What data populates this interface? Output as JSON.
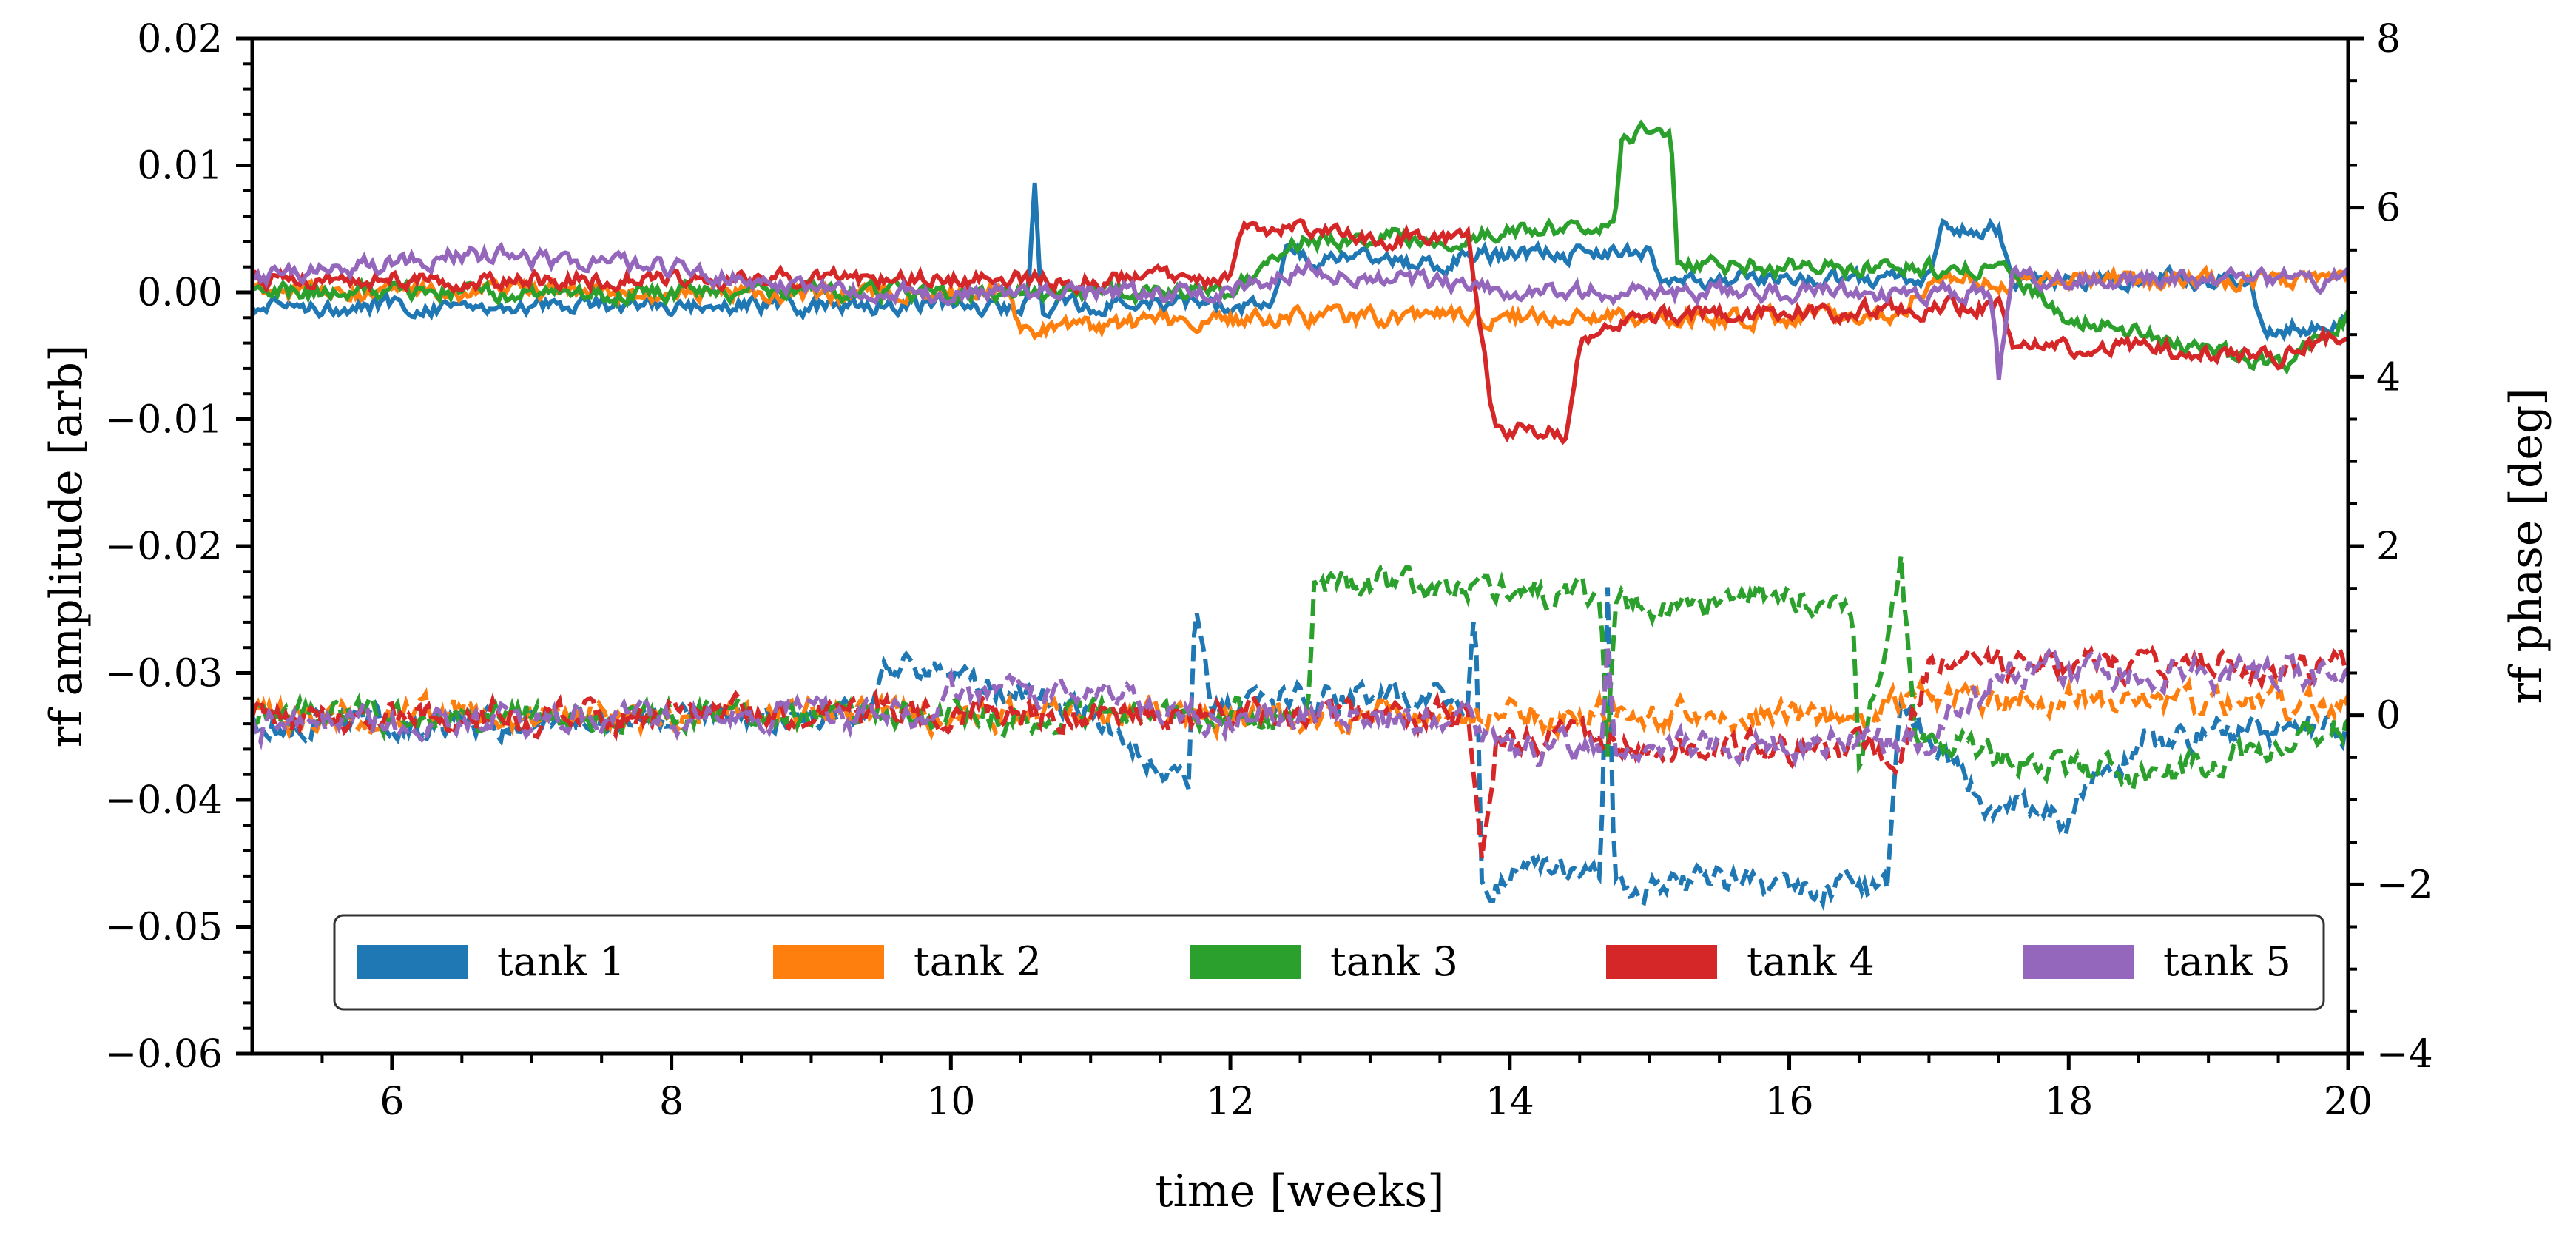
{
  "chart_data": {
    "type": "line",
    "xlabel": "time [weeks]",
    "ylabel_left": "rf amplitude [arb]",
    "ylabel_right": "rf phase [deg]",
    "xlim": [
      5,
      20
    ],
    "ylim_left": [
      -0.06,
      0.02
    ],
    "ylim_right": [
      -4,
      8
    ],
    "xticks": [
      "6",
      "8",
      "10",
      "12",
      "14",
      "16",
      "18",
      "20"
    ],
    "xtick_values": [
      6,
      8,
      10,
      12,
      14,
      16,
      18,
      20
    ],
    "yticks_left": [
      "0.02",
      "0.01",
      "0.00",
      "−0.01",
      "−0.02",
      "−0.03",
      "−0.04",
      "−0.05",
      "−0.06"
    ],
    "ytick_left_values": [
      0.02,
      0.01,
      0,
      -0.01,
      -0.02,
      -0.03,
      -0.04,
      -0.05,
      -0.06
    ],
    "yticks_right": [
      "8",
      "6",
      "4",
      "2",
      "0",
      "−2",
      "−4"
    ],
    "ytick_right_values": [
      8,
      6,
      4,
      2,
      0,
      -2,
      -4
    ],
    "legend_position": "lower-center",
    "legend": [
      "tank 1",
      "tank 2",
      "tank 3",
      "tank 4",
      "tank 5"
    ],
    "series": [
      {
        "name": "tank 1",
        "color": "#1f77b4",
        "amplitude": [
          [
            5,
            -0.001
          ],
          [
            10.55,
            -0.001
          ],
          [
            10.6,
            0.0085
          ],
          [
            10.65,
            -0.001
          ],
          [
            12.3,
            -0.001
          ],
          [
            12.4,
            0.003
          ],
          [
            13.5,
            0.002
          ],
          [
            13.7,
            0.003
          ],
          [
            15,
            0.003
          ],
          [
            15.1,
            0.001
          ],
          [
            17,
            0.001
          ],
          [
            17.1,
            0.005
          ],
          [
            17.5,
            0.005
          ],
          [
            17.6,
            0.001
          ],
          [
            19.3,
            0.001
          ],
          [
            19.4,
            -0.003
          ],
          [
            20,
            -0.002
          ]
        ],
        "phase": [
          [
            5,
            -0.1
          ],
          [
            9.4,
            0
          ],
          [
            9.5,
            0.6
          ],
          [
            10.5,
            0.3
          ],
          [
            11,
            0
          ],
          [
            11.7,
            -0.9
          ],
          [
            11.75,
            1.4
          ],
          [
            11.85,
            0.2
          ],
          [
            13.7,
            0.2
          ],
          [
            13.75,
            1.5
          ],
          [
            13.8,
            -2
          ],
          [
            14.65,
            -1.8
          ],
          [
            14.7,
            1.5
          ],
          [
            14.75,
            -2
          ],
          [
            16.7,
            -2
          ],
          [
            16.8,
            0.2
          ],
          [
            17.4,
            -1
          ],
          [
            18,
            -1.2
          ],
          [
            18.5,
            -0.3
          ],
          [
            20,
            -0.1
          ]
        ]
      },
      {
        "name": "tank 2",
        "color": "#ff7f0e",
        "amplitude": [
          [
            5,
            0.0
          ],
          [
            10.4,
            0.0
          ],
          [
            10.5,
            -0.003
          ],
          [
            12,
            -0.002
          ],
          [
            14,
            -0.002
          ],
          [
            16.8,
            -0.002
          ],
          [
            17,
            0.001
          ],
          [
            20,
            0.001
          ]
        ],
        "phase": [
          [
            5,
            0
          ],
          [
            12,
            0
          ],
          [
            16.5,
            0
          ],
          [
            17,
            0.2
          ],
          [
            20,
            0.1
          ]
        ]
      },
      {
        "name": "tank 3",
        "color": "#2ca02c",
        "amplitude": [
          [
            5,
            0.0
          ],
          [
            12,
            0.0
          ],
          [
            12.5,
            0.004
          ],
          [
            14.6,
            0.005
          ],
          [
            14.75,
            0.005
          ],
          [
            14.8,
            0.0125
          ],
          [
            15.15,
            0.0125
          ],
          [
            15.2,
            0.002
          ],
          [
            17.5,
            0.002
          ],
          [
            18,
            -0.002
          ],
          [
            19.5,
            -0.006
          ],
          [
            20,
            -0.002
          ]
        ],
        "phase": [
          [
            5,
            0
          ],
          [
            12.55,
            0
          ],
          [
            12.6,
            1.6
          ],
          [
            14.65,
            1.4
          ],
          [
            14.7,
            -0.3
          ],
          [
            14.75,
            1.3
          ],
          [
            16.45,
            1.4
          ],
          [
            16.5,
            -0.5
          ],
          [
            16.8,
            1.8
          ],
          [
            16.9,
            -0.2
          ],
          [
            17.5,
            -0.5
          ],
          [
            18.5,
            -0.7
          ],
          [
            19,
            -0.6
          ],
          [
            20,
            -0.1
          ]
        ]
      },
      {
        "name": "tank 4",
        "color": "#d62728",
        "amplitude": [
          [
            5,
            0.001
          ],
          [
            12,
            0.001
          ],
          [
            12.1,
            0.005
          ],
          [
            13.7,
            0.004
          ],
          [
            13.8,
            -0.004
          ],
          [
            13.9,
            -0.011
          ],
          [
            14.4,
            -0.011
          ],
          [
            14.5,
            -0.004
          ],
          [
            15,
            -0.002
          ],
          [
            17.5,
            -0.001
          ],
          [
            17.6,
            -0.004
          ],
          [
            19.5,
            -0.005
          ],
          [
            20,
            -0.003
          ]
        ],
        "phase": [
          [
            5,
            0
          ],
          [
            13.7,
            0
          ],
          [
            13.8,
            -1.6
          ],
          [
            13.9,
            -0.3
          ],
          [
            16.8,
            -0.4
          ],
          [
            17,
            0.6
          ],
          [
            20,
            0.6
          ]
        ]
      },
      {
        "name": "tank 5",
        "color": "#9467bd",
        "amplitude": [
          [
            5,
            0.001
          ],
          [
            6.5,
            0.003
          ],
          [
            8,
            0.002
          ],
          [
            9,
            0.0
          ],
          [
            12,
            0.0
          ],
          [
            12.5,
            0.002
          ],
          [
            14,
            0.0
          ],
          [
            17.45,
            0.0
          ],
          [
            17.5,
            -0.0065
          ],
          [
            17.6,
            0.001
          ],
          [
            20,
            0.001
          ]
        ],
        "phase": [
          [
            5,
            -0.1
          ],
          [
            9.8,
            0
          ],
          [
            10,
            0.3
          ],
          [
            11,
            0.2
          ],
          [
            12,
            0
          ],
          [
            13.6,
            0
          ],
          [
            14,
            -0.4
          ],
          [
            14.65,
            -0.4
          ],
          [
            14.7,
            0.9
          ],
          [
            14.75,
            -0.4
          ],
          [
            17,
            -0.3
          ],
          [
            17.5,
            0.5
          ],
          [
            20,
            0.5
          ]
        ]
      }
    ]
  }
}
